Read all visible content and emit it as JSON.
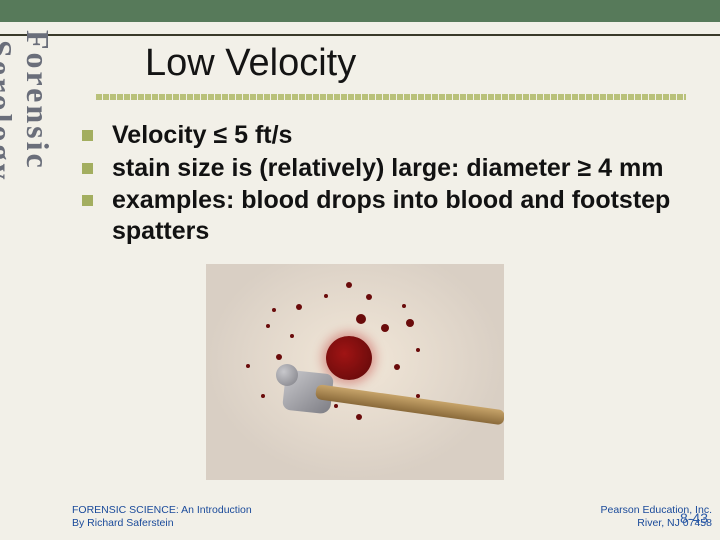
{
  "colors": {
    "slide_bg": "#f2f0e8",
    "top_bar": "#577a5a",
    "vertical_text": "#6a6e7a",
    "hr": "#3a3a2a",
    "title_text": "#141414",
    "title_underline": "#b9c17a",
    "bullet_square": "#a3ae5f",
    "body_text": "#121212",
    "footer_text": "#1a4a9a",
    "pagenum_text": "#2a5aa8",
    "image_floor": "#d9cfc4",
    "image_floor_highlight": "#f2e7d8",
    "blood_main": "#a01414",
    "blood_dark": "#6a0b0b",
    "hammer_metal_light": "#c8c8cc",
    "hammer_metal_dark": "#7d7d84",
    "hammer_handle_light": "#c7a46a",
    "hammer_handle_dark": "#8a6a3a"
  },
  "vertical_label": {
    "word1": "Forensic",
    "word2": "Serology"
  },
  "title": "Low Velocity",
  "bullets": [
    "Velocity ≤ 5 ft/s",
    "stain size is (relatively) large:  diameter ≥ 4 mm",
    "examples:  blood drops into blood and footstep spatters"
  ],
  "image": {
    "description": "blood-spatter-with-hammer",
    "spatter_points": [
      [
        90,
        40,
        3
      ],
      [
        160,
        30,
        3
      ],
      [
        200,
        55,
        4
      ],
      [
        70,
        90,
        3
      ],
      [
        60,
        60,
        2
      ],
      [
        188,
        100,
        3
      ],
      [
        210,
        84,
        2
      ],
      [
        140,
        18,
        3
      ],
      [
        118,
        30,
        2
      ],
      [
        100,
        120,
        3
      ],
      [
        150,
        150,
        3
      ],
      [
        55,
        130,
        2
      ],
      [
        210,
        130,
        2
      ],
      [
        40,
        100,
        2
      ],
      [
        175,
        60,
        4
      ],
      [
        128,
        140,
        2
      ],
      [
        84,
        70,
        2
      ],
      [
        196,
        40,
        2
      ],
      [
        66,
        44,
        2
      ],
      [
        150,
        50,
        5
      ]
    ]
  },
  "footer": {
    "left_line1": "FORENSIC SCIENCE: An Introduction",
    "left_line2": "By Richard Saferstein",
    "right_line1": "Pearson Education, Inc.",
    "right_line2": "River, NJ 07458"
  },
  "page_number": "8-43"
}
